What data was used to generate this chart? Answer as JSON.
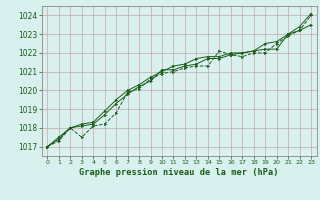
{
  "title": "Graphe pression niveau de la mer (hPa)",
  "bg_color": "#d8f0ee",
  "grid_major_color": "#c8a8a8",
  "grid_minor_color": "#ddd8d8",
  "line_color": "#1a5c1a",
  "xlim": [
    -0.5,
    23.5
  ],
  "ylim": [
    1016.5,
    1024.5
  ],
  "yticks": [
    1017,
    1018,
    1019,
    1020,
    1021,
    1022,
    1023,
    1024
  ],
  "xticks": [
    0,
    1,
    2,
    3,
    4,
    5,
    6,
    7,
    8,
    9,
    10,
    11,
    12,
    13,
    14,
    15,
    16,
    17,
    18,
    19,
    20,
    21,
    22,
    23
  ],
  "series1_x": [
    0,
    1,
    2,
    3,
    4,
    5,
    6,
    7,
    8,
    9,
    10,
    11,
    12,
    13,
    14,
    15,
    16,
    17,
    18,
    19,
    20,
    21,
    22,
    23
  ],
  "series1_y": [
    1017.0,
    1017.3,
    1018.0,
    1017.5,
    1018.1,
    1018.2,
    1018.8,
    1019.9,
    1020.1,
    1020.6,
    1020.9,
    1021.0,
    1021.2,
    1021.3,
    1021.3,
    1022.1,
    1021.9,
    1021.8,
    1022.0,
    1022.0,
    1022.5,
    1022.9,
    1023.2,
    1024.0
  ],
  "series2_x": [
    0,
    1,
    2,
    3,
    4,
    5,
    6,
    7,
    8,
    9,
    10,
    11,
    12,
    13,
    14,
    15,
    16,
    17,
    18,
    19,
    20,
    21,
    22,
    23
  ],
  "series2_y": [
    1017.0,
    1017.4,
    1018.0,
    1018.1,
    1018.2,
    1018.7,
    1019.3,
    1019.8,
    1020.2,
    1020.5,
    1021.1,
    1021.1,
    1021.3,
    1021.4,
    1021.7,
    1021.7,
    1021.9,
    1022.0,
    1022.1,
    1022.2,
    1022.2,
    1023.0,
    1023.2,
    1023.5
  ],
  "series3_x": [
    0,
    1,
    2,
    3,
    4,
    5,
    6,
    7,
    8,
    9,
    10,
    11,
    12,
    13,
    14,
    15,
    16,
    17,
    18,
    19,
    20,
    21,
    22,
    23
  ],
  "series3_y": [
    1017.0,
    1017.5,
    1018.0,
    1018.2,
    1018.3,
    1018.9,
    1019.5,
    1020.0,
    1020.3,
    1020.7,
    1021.0,
    1021.3,
    1021.4,
    1021.7,
    1021.8,
    1021.8,
    1022.0,
    1022.0,
    1022.1,
    1022.5,
    1022.6,
    1023.0,
    1023.4,
    1024.1
  ]
}
